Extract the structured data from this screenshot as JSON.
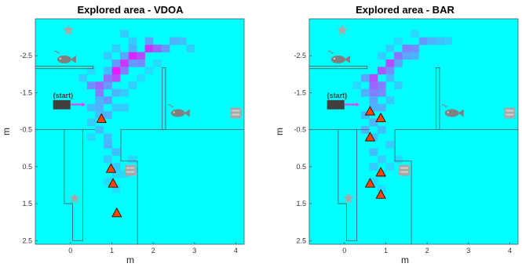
{
  "chart_data": [
    {
      "type": "heatmap",
      "title": "Explored area - VDOA",
      "xlabel": "m",
      "ylabel": "m",
      "xlim": [
        -0.85,
        4.2
      ],
      "ylim": [
        2.6,
        -3.5
      ],
      "y_reversed": true,
      "xticks": [
        0,
        1,
        2,
        3,
        4
      ],
      "yticks": [
        -2.5,
        -1.5,
        -0.5,
        0.5,
        1.5,
        2.5
      ],
      "grid": false,
      "start_label": "(start)",
      "cell_size": 0.2,
      "base_color": "#00ffff",
      "cells": [
        {
          "x": 1.1,
          "y": -2.1,
          "v": 0.9
        },
        {
          "x": 1.3,
          "y": -2.3,
          "v": 0.8
        },
        {
          "x": 1.5,
          "y": -2.5,
          "v": 0.85
        },
        {
          "x": 1.7,
          "y": -2.5,
          "v": 0.7
        },
        {
          "x": 1.9,
          "y": -2.7,
          "v": 0.8
        },
        {
          "x": 2.1,
          "y": -2.7,
          "v": 0.6
        },
        {
          "x": 1.1,
          "y": -1.9,
          "v": 0.7
        },
        {
          "x": 0.9,
          "y": -1.9,
          "v": 0.55
        },
        {
          "x": 0.7,
          "y": -1.7,
          "v": 0.6
        },
        {
          "x": 0.5,
          "y": -1.7,
          "v": 0.45
        },
        {
          "x": 0.7,
          "y": -1.5,
          "v": 0.5
        },
        {
          "x": 0.9,
          "y": -1.3,
          "v": 0.4
        },
        {
          "x": 0.9,
          "y": -1.7,
          "v": 0.4
        },
        {
          "x": 1.3,
          "y": -2.1,
          "v": 0.5
        },
        {
          "x": 1.7,
          "y": -2.3,
          "v": 0.45
        },
        {
          "x": 1.5,
          "y": -2.3,
          "v": 0.4
        },
        {
          "x": 2.3,
          "y": -2.7,
          "v": 0.4
        },
        {
          "x": 2.5,
          "y": -2.9,
          "v": 0.3
        },
        {
          "x": 2.7,
          "y": -2.9,
          "v": 0.25
        },
        {
          "x": 2.9,
          "y": -2.7,
          "v": 0.2
        },
        {
          "x": 1.9,
          "y": -2.9,
          "v": 0.35
        },
        {
          "x": 1.5,
          "y": -2.7,
          "v": 0.3
        },
        {
          "x": 1.3,
          "y": -2.5,
          "v": 0.35
        },
        {
          "x": 1.1,
          "y": -2.3,
          "v": 0.4
        },
        {
          "x": 1.3,
          "y": -3.1,
          "v": 0.2
        },
        {
          "x": 1.5,
          "y": -2.9,
          "v": 0.2
        },
        {
          "x": 1.1,
          "y": -2.7,
          "v": 0.2
        },
        {
          "x": 0.9,
          "y": -2.5,
          "v": 0.2
        },
        {
          "x": 0.9,
          "y": -2.1,
          "v": 0.25
        },
        {
          "x": 1.1,
          "y": -1.5,
          "v": 0.3
        },
        {
          "x": 0.7,
          "y": -1.3,
          "v": 0.3
        },
        {
          "x": 0.5,
          "y": -1.1,
          "v": 0.25
        },
        {
          "x": 0.7,
          "y": -1.1,
          "v": 0.3
        },
        {
          "x": 0.9,
          "y": -0.9,
          "v": 0.3
        },
        {
          "x": 0.7,
          "y": -0.9,
          "v": 0.25
        },
        {
          "x": 0.7,
          "y": -0.5,
          "v": 0.25
        },
        {
          "x": 0.9,
          "y": -0.3,
          "v": 0.25
        },
        {
          "x": 0.9,
          "y": -0.1,
          "v": 0.3
        },
        {
          "x": 1.1,
          "y": 0.1,
          "v": 0.25
        },
        {
          "x": 0.9,
          "y": 0.3,
          "v": 0.2
        },
        {
          "x": 1.1,
          "y": 0.5,
          "v": 0.2
        },
        {
          "x": 1.1,
          "y": 0.7,
          "v": 0.15
        },
        {
          "x": 0.9,
          "y": 0.9,
          "v": 0.15
        },
        {
          "x": 1.1,
          "y": 1.1,
          "v": 0.15
        },
        {
          "x": 1.3,
          "y": 0.7,
          "v": 0.15
        },
        {
          "x": 1.5,
          "y": 0.3,
          "v": 0.15
        },
        {
          "x": 0.5,
          "y": -0.7,
          "v": 0.2
        },
        {
          "x": 0.5,
          "y": -0.3,
          "v": 0.15
        },
        {
          "x": 1.3,
          "y": -1.1,
          "v": 0.2
        },
        {
          "x": 1.1,
          "y": -1.1,
          "v": 0.2
        },
        {
          "x": 1.3,
          "y": -1.5,
          "v": 0.2
        },
        {
          "x": 1.5,
          "y": -1.7,
          "v": 0.2
        },
        {
          "x": 1.7,
          "y": -1.9,
          "v": 0.15
        },
        {
          "x": 1.9,
          "y": -2.1,
          "v": 0.15
        },
        {
          "x": 2.1,
          "y": -2.3,
          "v": 0.15
        },
        {
          "x": 0.3,
          "y": -1.9,
          "v": 0.2
        },
        {
          "x": 0.5,
          "y": -2.1,
          "v": 0.15
        }
      ],
      "robots": [
        {
          "x": 0.75,
          "y": -0.8
        },
        {
          "x": 0.98,
          "y": 0.55
        },
        {
          "x": 1.03,
          "y": 0.95
        },
        {
          "x": 1.12,
          "y": 1.75
        }
      ]
    },
    {
      "type": "heatmap",
      "title": "Explored area - BAR",
      "xlabel": "m",
      "ylabel": "m",
      "xlim": [
        -0.85,
        4.2
      ],
      "ylim": [
        2.6,
        -3.5
      ],
      "y_reversed": true,
      "xticks": [
        0,
        1,
        2,
        3,
        4
      ],
      "yticks": [
        -2.5,
        -1.5,
        -0.5,
        0.5,
        1.5,
        2.5
      ],
      "grid": false,
      "start_label": "(start)",
      "cell_size": 0.2,
      "base_color": "#00ffff",
      "cells": [
        {
          "x": 0.7,
          "y": -1.9,
          "v": 0.7
        },
        {
          "x": 0.7,
          "y": -1.7,
          "v": 0.6
        },
        {
          "x": 0.9,
          "y": -2.1,
          "v": 0.65
        },
        {
          "x": 1.1,
          "y": -2.3,
          "v": 0.7
        },
        {
          "x": 1.3,
          "y": -2.5,
          "v": 0.55
        },
        {
          "x": 1.5,
          "y": -2.7,
          "v": 0.5
        },
        {
          "x": 1.7,
          "y": -2.7,
          "v": 0.45
        },
        {
          "x": 1.9,
          "y": -2.9,
          "v": 0.4
        },
        {
          "x": 1.1,
          "y": -2.1,
          "v": 0.45
        },
        {
          "x": 0.9,
          "y": -1.7,
          "v": 0.5
        },
        {
          "x": 0.9,
          "y": -1.5,
          "v": 0.45
        },
        {
          "x": 0.7,
          "y": -1.5,
          "v": 0.5
        },
        {
          "x": 1.3,
          "y": -2.3,
          "v": 0.35
        },
        {
          "x": 1.5,
          "y": -2.5,
          "v": 0.35
        },
        {
          "x": 1.7,
          "y": -2.5,
          "v": 0.3
        },
        {
          "x": 2.1,
          "y": -2.9,
          "v": 0.3
        },
        {
          "x": 2.3,
          "y": -2.9,
          "v": 0.25
        },
        {
          "x": 2.5,
          "y": -2.9,
          "v": 0.2
        },
        {
          "x": 0.5,
          "y": -1.9,
          "v": 0.35
        },
        {
          "x": 0.5,
          "y": -1.5,
          "v": 0.3
        },
        {
          "x": 0.7,
          "y": -1.3,
          "v": 0.35
        },
        {
          "x": 0.9,
          "y": -1.1,
          "v": 0.3
        },
        {
          "x": 0.7,
          "y": -1.1,
          "v": 0.3
        },
        {
          "x": 0.5,
          "y": -0.9,
          "v": 0.25
        },
        {
          "x": 0.7,
          "y": -0.7,
          "v": 0.3
        },
        {
          "x": 0.5,
          "y": -0.5,
          "v": 0.3
        },
        {
          "x": 0.7,
          "y": -0.3,
          "v": 0.25
        },
        {
          "x": 0.9,
          "y": -0.5,
          "v": 0.25
        },
        {
          "x": 0.7,
          "y": 0.1,
          "v": 0.25
        },
        {
          "x": 0.9,
          "y": 0.3,
          "v": 0.2
        },
        {
          "x": 0.7,
          "y": 0.5,
          "v": 0.2
        },
        {
          "x": 0.9,
          "y": 0.7,
          "v": 0.15
        },
        {
          "x": 0.7,
          "y": 0.9,
          "v": 0.15
        },
        {
          "x": 0.9,
          "y": 1.1,
          "v": 0.15
        },
        {
          "x": 1.1,
          "y": 0.5,
          "v": 0.15
        },
        {
          "x": 1.3,
          "y": 0.3,
          "v": 0.15
        },
        {
          "x": 1.1,
          "y": -0.1,
          "v": 0.2
        },
        {
          "x": 1.1,
          "y": -1.3,
          "v": 0.2
        },
        {
          "x": 1.3,
          "y": -1.7,
          "v": 0.2
        },
        {
          "x": 1.1,
          "y": -1.9,
          "v": 0.25
        },
        {
          "x": 0.9,
          "y": -2.5,
          "v": 0.2
        },
        {
          "x": 1.1,
          "y": -2.7,
          "v": 0.2
        },
        {
          "x": 1.3,
          "y": -2.9,
          "v": 0.15
        },
        {
          "x": 1.7,
          "y": -3.1,
          "v": 0.15
        },
        {
          "x": 0.3,
          "y": -1.7,
          "v": 0.15
        }
      ],
      "robots": [
        {
          "x": 0.62,
          "y": -1.0
        },
        {
          "x": 0.88,
          "y": -0.82
        },
        {
          "x": 0.62,
          "y": -0.3
        },
        {
          "x": 0.88,
          "y": 0.65
        },
        {
          "x": 0.62,
          "y": 0.95
        },
        {
          "x": 0.88,
          "y": 1.25
        }
      ]
    }
  ]
}
